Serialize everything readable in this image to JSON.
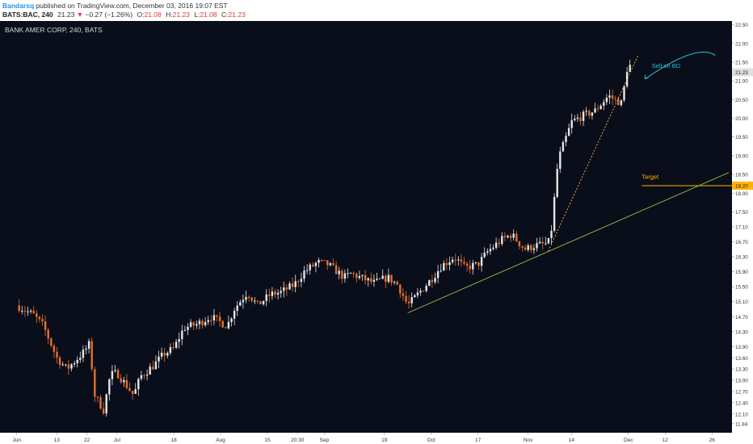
{
  "header": {
    "author": "Bandarsq",
    "published_text": " published on TradingView.com, December 03, 2016 19:07 EST",
    "symbol": "BATS:BAC, 240",
    "last": "21.23",
    "change": "−0.27 (−1.26%)",
    "o_label": "O:",
    "o_value": "21.08",
    "h_label": "H:",
    "h_value": "21.23",
    "l_label": "L:",
    "l_value": "21.08",
    "c_label": "C:",
    "c_value": "21.23"
  },
  "colors": {
    "background": "#0a0e1a",
    "up_candle": "#e6e6e6",
    "down_candle": "#e8702a",
    "trendline_support": "#8bc34a",
    "trendline_rising": "#ffb74d",
    "target_line": "#ffb300",
    "annotation": "#26c6da",
    "price_tag_bg": "#e0e0e0",
    "target_tag_bg": "#ffb300"
  },
  "chart_data": {
    "type": "candlestick",
    "title": "BANK AMER CORP, 240, BATS",
    "ylim": [
      11.6,
      22.6
    ],
    "y_ticks": [
      "22.50",
      "22.00",
      "21.50",
      "21.00",
      "20.50",
      "20.00",
      "19.50",
      "19.00",
      "18.50",
      "18.00",
      "17.50",
      "17.10",
      "16.70",
      "16.30",
      "15.90",
      "15.50",
      "15.10",
      "14.70",
      "14.30",
      "13.90",
      "13.60",
      "13.30",
      "13.00",
      "12.70",
      "12.40",
      "12.10",
      "11.84"
    ],
    "x_ticks": [
      {
        "label": "Jun",
        "date": "2016-06-01"
      },
      {
        "label": "13",
        "date": "2016-06-13"
      },
      {
        "label": "22",
        "date": "2016-06-22"
      },
      {
        "label": "Jul",
        "date": "2016-07-01"
      },
      {
        "label": "18",
        "date": "2016-07-18"
      },
      {
        "label": "Aug",
        "date": "2016-08-01"
      },
      {
        "label": "15",
        "date": "2016-08-15"
      },
      {
        "label": "20:30",
        "date": "2016-08-24"
      },
      {
        "label": "Sep",
        "date": "2016-09-01"
      },
      {
        "label": "19",
        "date": "2016-09-19"
      },
      {
        "label": "Oct",
        "date": "2016-10-03"
      },
      {
        "label": "17",
        "date": "2016-10-17"
      },
      {
        "label": "Nov",
        "date": "2016-11-01"
      },
      {
        "label": "14",
        "date": "2016-11-14"
      },
      {
        "label": "Dec",
        "date": "2016-12-01"
      },
      {
        "label": "12",
        "date": "2016-12-12"
      },
      {
        "label": "26",
        "date": "2016-12-26"
      }
    ],
    "last_price_tag": "21.23",
    "target_price_tag": "18.20",
    "annotations": [
      {
        "text": "Sell on BD",
        "date": "2016-12-08",
        "price": 21.35
      },
      {
        "text": "Target",
        "date": "2016-12-05",
        "price": 18.38
      }
    ],
    "target_line": {
      "price": 18.2,
      "start_date": "2016-12-05"
    },
    "trendlines": [
      {
        "name": "support",
        "from": {
          "date": "2016-09-26",
          "price": 14.8
        },
        "to": {
          "date": "2016-12-31",
          "price": 18.55
        }
      },
      {
        "name": "rising",
        "from": {
          "date": "2016-11-07",
          "price": 16.45
        },
        "to": {
          "date": "2016-12-04",
          "price": 21.7
        }
      }
    ],
    "waypoints": [
      [
        "2016-06-01",
        15.0
      ],
      [
        "2016-06-06",
        14.75
      ],
      [
        "2016-06-09",
        14.45
      ],
      [
        "2016-06-13",
        13.6
      ],
      [
        "2016-06-16",
        13.3
      ],
      [
        "2016-06-21",
        13.75
      ],
      [
        "2016-06-23",
        14.0
      ],
      [
        "2016-06-24",
        12.65
      ],
      [
        "2016-06-27",
        12.2
      ],
      [
        "2016-06-29",
        13.15
      ],
      [
        "2016-07-01",
        13.2
      ],
      [
        "2016-07-06",
        12.6
      ],
      [
        "2016-07-08",
        13.1
      ],
      [
        "2016-07-12",
        13.4
      ],
      [
        "2016-07-15",
        13.7
      ],
      [
        "2016-07-18",
        13.85
      ],
      [
        "2016-07-21",
        14.4
      ],
      [
        "2016-07-25",
        14.5
      ],
      [
        "2016-07-29",
        14.7
      ],
      [
        "2016-08-01",
        14.55
      ],
      [
        "2016-08-03",
        14.45
      ],
      [
        "2016-08-05",
        14.9
      ],
      [
        "2016-08-09",
        15.35
      ],
      [
        "2016-08-12",
        15.0
      ],
      [
        "2016-08-16",
        15.3
      ],
      [
        "2016-08-19",
        15.35
      ],
      [
        "2016-08-23",
        15.55
      ],
      [
        "2016-08-26",
        15.9
      ],
      [
        "2016-08-30",
        16.15
      ],
      [
        "2016-09-02",
        16.1
      ],
      [
        "2016-09-07",
        15.75
      ],
      [
        "2016-09-09",
        15.85
      ],
      [
        "2016-09-13",
        15.7
      ],
      [
        "2016-09-16",
        15.6
      ],
      [
        "2016-09-20",
        15.75
      ],
      [
        "2016-09-23",
        15.55
      ],
      [
        "2016-09-26",
        15.0
      ],
      [
        "2016-09-29",
        15.3
      ],
      [
        "2016-10-03",
        15.7
      ],
      [
        "2016-10-06",
        16.05
      ],
      [
        "2016-10-10",
        16.3
      ],
      [
        "2016-10-13",
        16.0
      ],
      [
        "2016-10-17",
        16.1
      ],
      [
        "2016-10-20",
        16.45
      ],
      [
        "2016-10-24",
        16.75
      ],
      [
        "2016-10-27",
        16.9
      ],
      [
        "2016-10-31",
        16.5
      ],
      [
        "2016-11-03",
        16.6
      ],
      [
        "2016-11-07",
        16.65
      ],
      [
        "2016-11-08",
        17.05
      ],
      [
        "2016-11-09",
        18.0
      ],
      [
        "2016-11-10",
        18.9
      ],
      [
        "2016-11-14",
        19.9
      ],
      [
        "2016-11-17",
        20.05
      ],
      [
        "2016-11-21",
        20.2
      ],
      [
        "2016-11-25",
        20.6
      ],
      [
        "2016-11-29",
        20.4
      ],
      [
        "2016-12-01",
        21.55
      ],
      [
        "2016-12-02",
        21.23
      ]
    ]
  }
}
